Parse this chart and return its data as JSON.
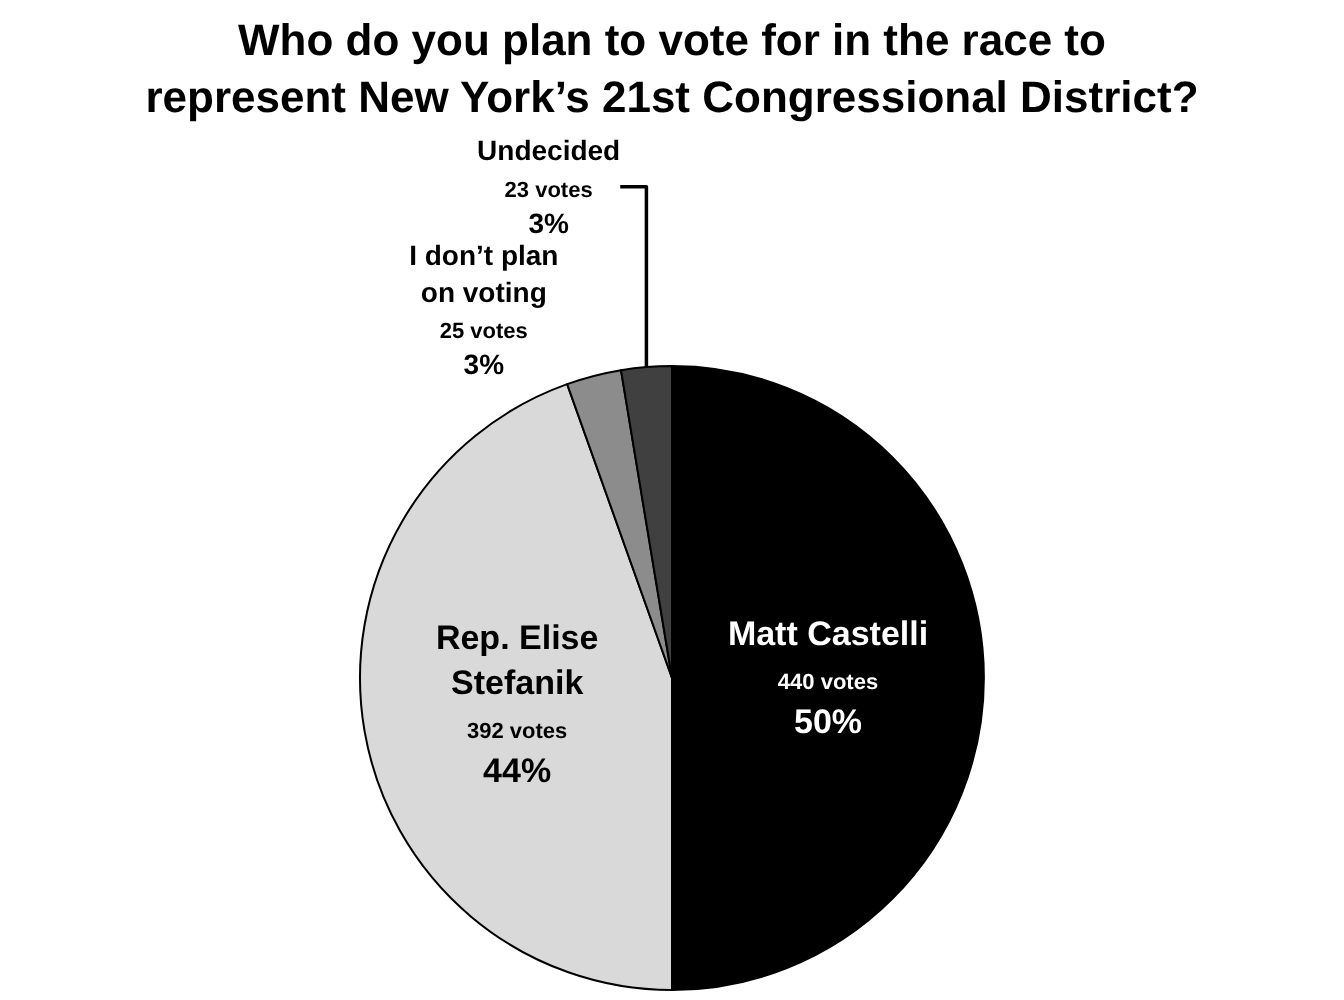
{
  "chart_data": {
    "type": "pie",
    "title": "Who do you plan to vote for in the race to\nrepresent New York’s 21st Congressional District?",
    "categories": [
      "Matt Castelli",
      "Rep. Elise Stefanik",
      "I don’t plan on voting",
      "Undecided"
    ],
    "values": [
      440,
      392,
      25,
      23
    ],
    "value_labels": [
      "440 votes\n50%",
      "392 votes\n44%",
      "25 votes\n3%",
      "23 votes\n3%"
    ],
    "colors": [
      "#000000",
      "#d9d9d9",
      "#8c8c8c",
      "#404040"
    ]
  }
}
